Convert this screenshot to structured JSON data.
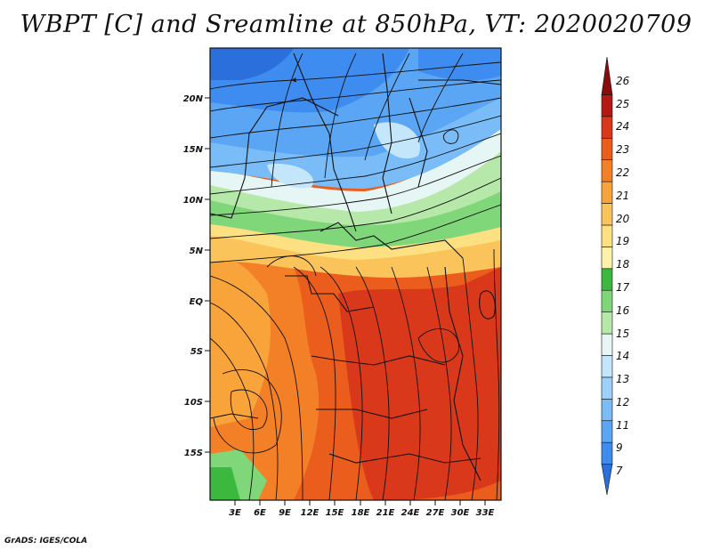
{
  "title": "WBPT [C] and Sreamline at 850hPa, VT: 2020020709",
  "footer": "GrADS: IGES/COLA",
  "map": {
    "lat_labels": [
      "20N",
      "15N",
      "10N",
      "5N",
      "EQ",
      "5S",
      "10S",
      "15S"
    ],
    "lon_labels": [
      "3E",
      "6E",
      "9E",
      "12E",
      "15E",
      "18E",
      "21E",
      "24E",
      "27E",
      "30E",
      "33E"
    ]
  },
  "colorbar": {
    "labels": [
      "7",
      "9",
      "11",
      "12",
      "13",
      "14",
      "15",
      "16",
      "17",
      "18",
      "19",
      "20",
      "21",
      "22",
      "23",
      "24",
      "25",
      "26"
    ],
    "colors": [
      "#2a6fdc",
      "#3e8cf0",
      "#5aa6f5",
      "#79bcf8",
      "#9dd0fa",
      "#c4e6fb",
      "#e6f6f4",
      "#b5e8a9",
      "#80d77a",
      "#3cb83e",
      "#fdf3a8",
      "#fce081",
      "#fbc45a",
      "#f8a43a",
      "#f38026",
      "#ea5d1c",
      "#d9391a",
      "#b51713",
      "#8a0b0b"
    ]
  }
}
